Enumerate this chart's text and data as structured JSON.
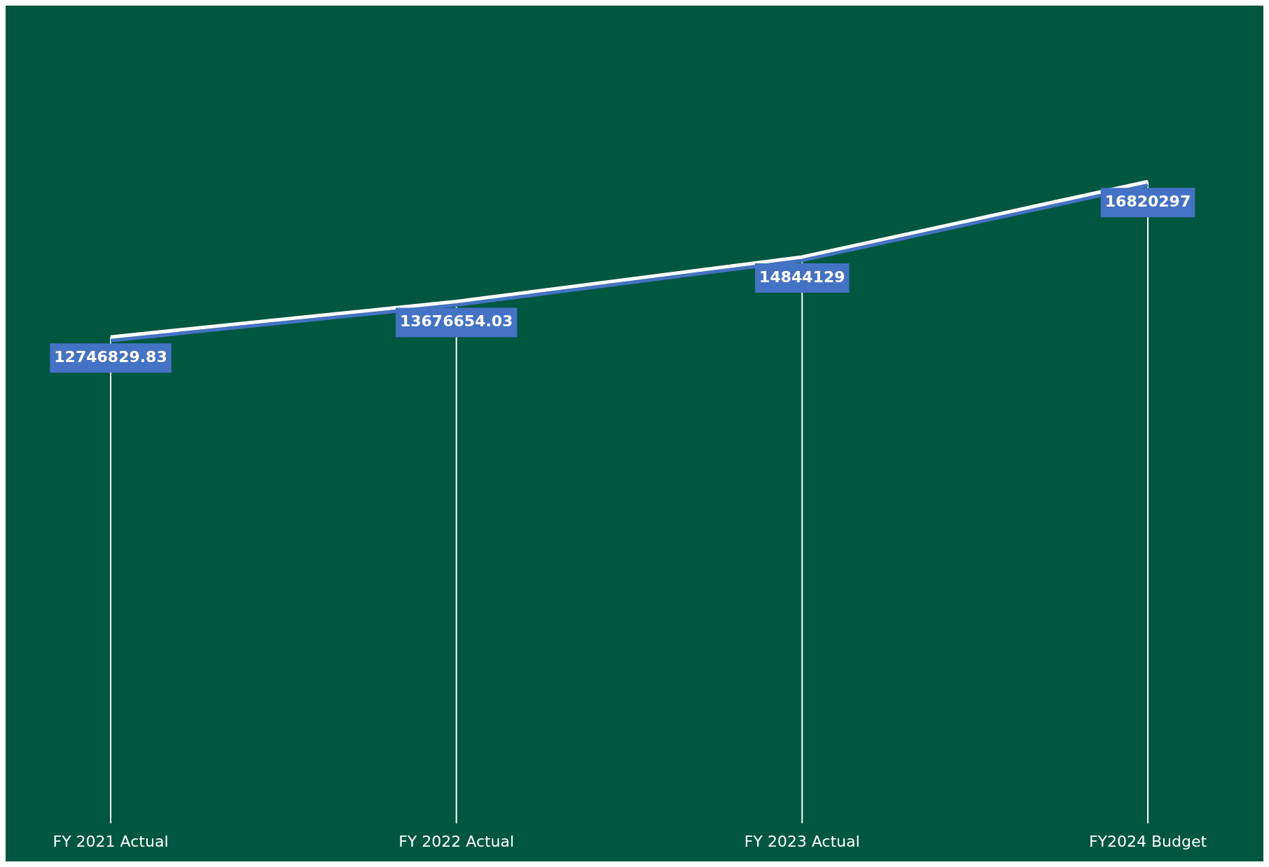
{
  "chart_data": {
    "type": "line",
    "categories": [
      "FY 2021 Actual",
      "FY 2022 Actual",
      "FY 2023 Actual",
      "FY2024 Budget"
    ],
    "series": [
      {
        "color": "#ffffff",
        "values": [
          12746829.83,
          13676654.03,
          14844129,
          16820297
        ]
      }
    ],
    "data_labels": true,
    "grid": "x",
    "legend": false,
    "tick_labels": "x",
    "marker": "none"
  }
}
